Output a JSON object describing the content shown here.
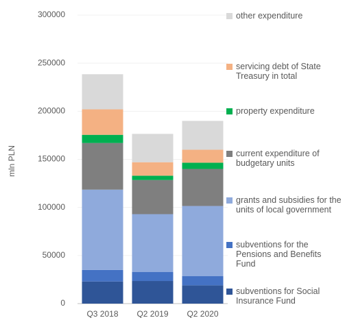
{
  "chart_data": {
    "type": "stacked_bar",
    "y_label": "mln PLN",
    "categories": [
      "Q3 2018",
      "Q2 2019",
      "Q2 2020"
    ],
    "series": [
      {
        "name": "subventions for Social Insurance Fund",
        "color": "#2f5597",
        "values": [
          23000,
          23500,
          19000
        ]
      },
      {
        "name": "subventions for the Pensions and Benefits Fund",
        "color": "#4472c4",
        "values": [
          12000,
          9500,
          9500
        ]
      },
      {
        "name": "grants and subsidies for the units of local government",
        "color": "#8faadc",
        "values": [
          83500,
          60000,
          73000
        ]
      },
      {
        "name": "current expenditure of budgetary units",
        "color": "#7f7f7f",
        "values": [
          48500,
          35500,
          38500
        ]
      },
      {
        "name": "property expenditure",
        "color": "#00b050",
        "values": [
          8500,
          4500,
          6500
        ]
      },
      {
        "name": "servicing debt of State Treasury in total",
        "color": "#f4b183",
        "values": [
          26500,
          14000,
          13500
        ]
      },
      {
        "name": "other expenditure",
        "color": "#d9d9d9",
        "values": [
          36500,
          29500,
          30000
        ]
      }
    ],
    "ylim": [
      0,
      300000
    ],
    "yticks": [
      0,
      50000,
      100000,
      150000,
      200000,
      250000,
      300000
    ],
    "grid": true
  }
}
